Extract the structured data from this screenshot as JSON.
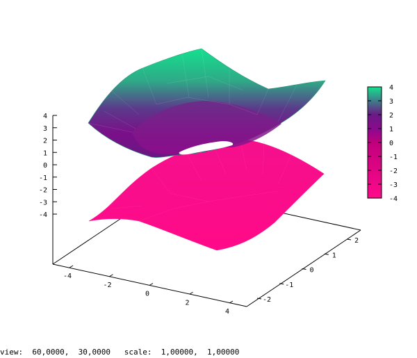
{
  "chart_data": {
    "type": "surface3d",
    "title": "",
    "function": "two-sheet hyperboloid: upper sheet colored by height, lower sheet near -4",
    "x_ticks": [
      "-4",
      "-2",
      "0",
      "2",
      "4"
    ],
    "y_ticks": [
      "-2",
      "-1",
      "0",
      "1",
      "2"
    ],
    "z_ticks": [
      "-4",
      "-3",
      "-2",
      "-1",
      "0",
      "1",
      "2",
      "3",
      "4"
    ],
    "xlim": [
      -4,
      4
    ],
    "ylim": [
      -2,
      2
    ],
    "zlim": [
      -4,
      4
    ],
    "colorbar": {
      "ticks": [
        "4",
        "3",
        "2",
        "1",
        "0",
        "-1",
        "-2",
        "-3",
        "-4"
      ],
      "range": [
        -4,
        4
      ],
      "stops": [
        {
          "value": 4,
          "color": "#14e08e"
        },
        {
          "value": 2,
          "color": "#6a1a86"
        },
        {
          "value": 1,
          "color": "#8a0a8e"
        },
        {
          "value": 0,
          "color": "#c0007e"
        },
        {
          "value": -4,
          "color": "#ff0a8a"
        }
      ],
      "placement": "right"
    },
    "lower_sheet_color": "#ff0a8a",
    "view": {
      "rot_x": 60,
      "rot_z": 30,
      "scale": 1,
      "scale_z": 1
    }
  },
  "status": {
    "text": "view:  60,0000,  30,0000   scale:  1,00000,  1,00000"
  }
}
